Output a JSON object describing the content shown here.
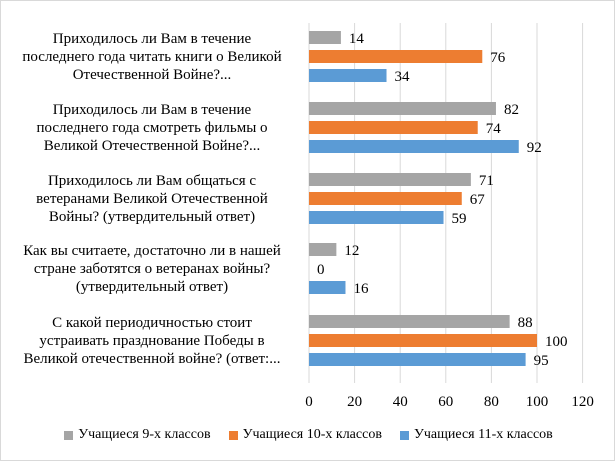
{
  "chart_data": {
    "type": "bar",
    "orientation": "horizontal",
    "categories": [
      "Приходилось ли Вам в течение\nпоследнего года читать книги о Великой\nОтечественной Войне?...",
      "Приходилось ли Вам в течение\nпоследнего года смотреть фильмы о\nВеликой Отечественной Войне?...",
      "Приходилось ли Вам общаться с\nветеранами Великой Отечественной\nВойны? (утвердительный ответ)",
      "Как вы считаете, достаточно ли в нашей\nстране заботятся о ветеранах войны?\n(утвердительный ответ)",
      "С какой периодичностью стоит\nустраивать празднование Победы в\nВеликой отечественной войне? (ответ:..."
    ],
    "series": [
      {
        "name": "Учащиеся 9-х классов",
        "color": "#a5a5a5",
        "values": [
          14,
          82,
          71,
          12,
          88
        ]
      },
      {
        "name": "Учащиеся 10-х классов",
        "color": "#ed7d31",
        "values": [
          76,
          74,
          67,
          0,
          100
        ]
      },
      {
        "name": "Учащиеся 11-х классов",
        "color": "#5b9bd5",
        "values": [
          34,
          92,
          59,
          16,
          95
        ]
      }
    ],
    "xlim": [
      0,
      120
    ],
    "xticks": [
      "0",
      "20",
      "40",
      "60",
      "80",
      "100",
      "120"
    ],
    "grid": true,
    "legend": "bottom",
    "data_labels": true
  }
}
